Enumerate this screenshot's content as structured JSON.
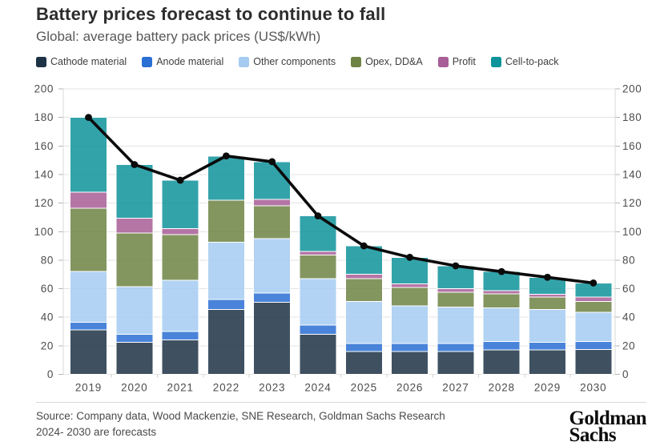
{
  "header": {
    "title": "Battery prices forecast to continue to fall",
    "subtitle": "Global: average battery pack prices (US$/kWh)"
  },
  "chart_data": {
    "type": "bar",
    "subtype": "stacked-bars-with-total-line",
    "title": "Battery prices forecast to continue to fall",
    "subtitle": "Global: average battery pack prices (US$/kWh)",
    "categories": [
      "2019",
      "2020",
      "2021",
      "2022",
      "2023",
      "2024",
      "2025",
      "2026",
      "2027",
      "2028",
      "2029",
      "2030"
    ],
    "series": [
      {
        "name": "Cathode material",
        "color": "#1d3245",
        "values": [
          31,
          22.5,
          24,
          45.5,
          50.5,
          28,
          16,
          16,
          16,
          17,
          17,
          17.5
        ]
      },
      {
        "name": "Anode material",
        "color": "#2a6fd4",
        "values": [
          5.5,
          5.5,
          6,
          7,
          6.5,
          6.5,
          5.5,
          5.5,
          5.5,
          6,
          5.5,
          5.5
        ]
      },
      {
        "name": "Other components",
        "color": "#a5cbf1",
        "values": [
          35.5,
          33.5,
          36,
          40,
          38,
          32.5,
          29.5,
          26.5,
          25.5,
          23.5,
          23,
          20.5
        ]
      },
      {
        "name": "Opex, DD&A",
        "color": "#6f8444",
        "values": [
          44.5,
          37.5,
          32,
          29.5,
          23,
          16.5,
          16,
          13,
          10.5,
          10,
          8.5,
          7.5
        ]
      },
      {
        "name": "Profit",
        "color": "#a85e96",
        "values": [
          11,
          10.5,
          4,
          0,
          4.5,
          2.5,
          3,
          2.5,
          2.5,
          2,
          2,
          3
        ]
      },
      {
        "name": "Cell-to-pack",
        "color": "#0f939b",
        "values": [
          52.5,
          37.5,
          34,
          31,
          26.5,
          25,
          20,
          18.5,
          16,
          13.5,
          12,
          10
        ]
      }
    ],
    "line": {
      "name": "Average battery pack price",
      "color": "#0b0b0b",
      "values": [
        180,
        147,
        136,
        153,
        149,
        111,
        90,
        82,
        76,
        72,
        68,
        64
      ]
    },
    "ylim": [
      0,
      200
    ],
    "ytick_step": 20,
    "y_axis_sides": "both",
    "grid": true,
    "legend_position": "top",
    "grid_color": "#e3e3e3",
    "axis_line_color": "#d9d9d9",
    "tick_color": "#b5b5b5",
    "axis_label_color": "#4c4c4c"
  },
  "footer": {
    "source_line1": "Source: Company data, Wood Mackenzie, SNE Research, Goldman Sachs Research",
    "source_line2": "2024- 2030 are forecasts",
    "logo_line1": "Goldman",
    "logo_line2": "Sachs"
  }
}
